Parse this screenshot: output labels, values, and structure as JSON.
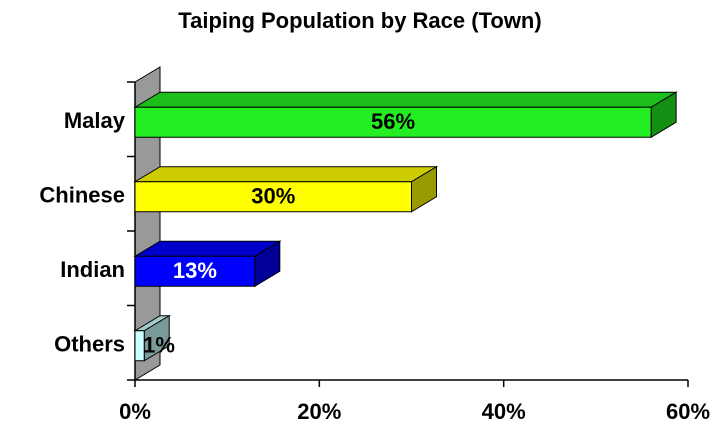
{
  "chart_data": {
    "type": "bar3d_horizontal",
    "title": "Taiping Population by Race (Town)",
    "categories": [
      "Malay",
      "Chinese",
      "Indian",
      "Others"
    ],
    "values": [
      56,
      30,
      13,
      1
    ],
    "value_labels": [
      "56%",
      "30%",
      "13%",
      "1%"
    ],
    "colors": [
      "#22ee22",
      "#ffff00",
      "#0000ff",
      "#ccffff"
    ],
    "xlim": [
      0,
      60
    ],
    "xticks": [
      {
        "value": 0,
        "label": "0%"
      },
      {
        "value": 20,
        "label": "20%"
      },
      {
        "value": 40,
        "label": "40%"
      },
      {
        "value": 60,
        "label": "60%"
      }
    ]
  }
}
